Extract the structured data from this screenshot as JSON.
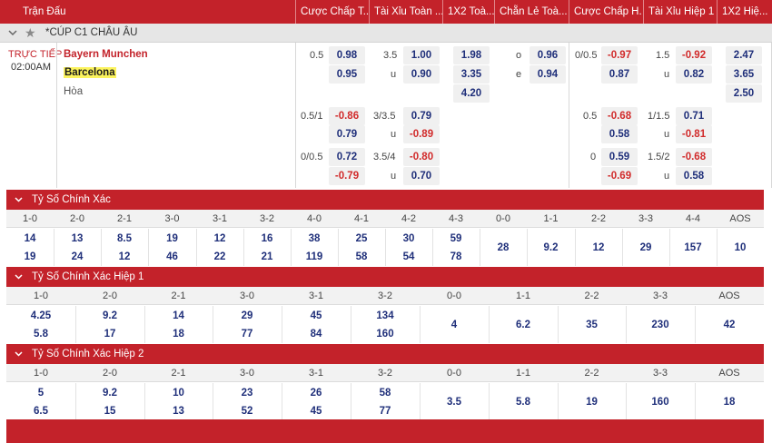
{
  "header": {
    "cols": [
      "Trận Đấu",
      "Cược Chấp T...",
      "Tài Xỉu Toàn ...",
      "1X2 Toà...",
      "Chẵn Lẻ Toà...",
      "Cược Chấp H...",
      "Tài Xỉu Hiệp 1",
      "1X2 Hiệ..."
    ]
  },
  "league": {
    "name": "*CÚP C1 CHÂU ÂU",
    "star_icon": "star-icon",
    "expand_icon": "chevron-down-icon"
  },
  "match": {
    "status": "TRỰC TIẾP",
    "time": "02:00AM",
    "home": "Bayern Munchen",
    "away": "Barcelona",
    "draw": "Hòa",
    "rows": [
      {
        "hcp_full": {
          "line": "0.5",
          "a": "0.98",
          "b": "0.95"
        },
        "ou_full": {
          "line": "3.5",
          "a": "1.00",
          "u_label": "u",
          "b": "0.90"
        },
        "x12_full": [
          "1.98",
          "3.35",
          "4.20"
        ],
        "oe_full": {
          "o_label": "o",
          "o": "0.96",
          "e_label": "e",
          "e": "0.94"
        },
        "hcp_h1": {
          "line": "0/0.5",
          "a": "-0.97",
          "b": "0.87"
        },
        "ou_h1": {
          "line": "1.5",
          "a": "-0.92",
          "u_label": "u",
          "b": "0.82"
        },
        "x12_h1": [
          "2.47",
          "3.65",
          "2.50"
        ]
      },
      {
        "hcp_full": {
          "line": "0.5/1",
          "a": "-0.86",
          "b": "0.79"
        },
        "ou_full": {
          "line": "3/3.5",
          "a": "0.79",
          "u_label": "u",
          "b": "-0.89"
        },
        "hcp_h1": {
          "line": "0.5",
          "a": "-0.68",
          "b": "0.58"
        },
        "ou_h1": {
          "line": "1/1.5",
          "a": "0.71",
          "u_label": "u",
          "b": "-0.81"
        }
      },
      {
        "hcp_full": {
          "line": "0/0.5",
          "a": "0.72",
          "b": "-0.79"
        },
        "ou_full": {
          "line": "3.5/4",
          "a": "-0.80",
          "u_label": "u",
          "b": "0.70"
        },
        "hcp_h1": {
          "line": "0",
          "a": "0.59",
          "b": "-0.69"
        },
        "ou_h1": {
          "line": "1.5/2",
          "a": "-0.68",
          "u_label": "u",
          "b": "0.58"
        }
      }
    ]
  },
  "correct_score": {
    "title": "Tỷ Số Chính Xác",
    "headers": [
      "1-0",
      "2-0",
      "2-1",
      "3-0",
      "3-1",
      "3-2",
      "4-0",
      "4-1",
      "4-2",
      "4-3",
      "0-0",
      "1-1",
      "2-2",
      "3-3",
      "4-4",
      "AOS"
    ],
    "top": [
      "14",
      "13",
      "8.5",
      "19",
      "12",
      "16",
      "38",
      "25",
      "30",
      "59",
      "28",
      "9.2",
      "12",
      "29",
      "157",
      "10"
    ],
    "bottom": [
      "19",
      "24",
      "12",
      "46",
      "22",
      "21",
      "119",
      "58",
      "54",
      "78",
      "",
      "",
      "",
      "",
      "",
      ""
    ]
  },
  "correct_score_h1": {
    "title": "Tỷ Số Chính Xác Hiệp 1",
    "headers": [
      "1-0",
      "2-0",
      "2-1",
      "3-0",
      "3-1",
      "3-2",
      "0-0",
      "1-1",
      "2-2",
      "3-3",
      "AOS"
    ],
    "top": [
      "4.25",
      "9.2",
      "14",
      "29",
      "45",
      "134",
      "4",
      "6.2",
      "35",
      "230",
      "42"
    ],
    "bottom": [
      "5.8",
      "17",
      "18",
      "77",
      "84",
      "160",
      "",
      "",
      "",
      "",
      ""
    ]
  },
  "correct_score_h2": {
    "title": "Tỷ Số Chính Xác Hiệp 2",
    "headers": [
      "1-0",
      "2-0",
      "2-1",
      "3-0",
      "3-1",
      "3-2",
      "0-0",
      "1-1",
      "2-2",
      "3-3",
      "AOS"
    ],
    "top": [
      "5",
      "9.2",
      "10",
      "23",
      "26",
      "58",
      "3.5",
      "5.8",
      "19",
      "160",
      "18"
    ],
    "bottom": [
      "6.5",
      "15",
      "13",
      "52",
      "45",
      "77",
      "",
      "",
      "",
      "",
      ""
    ]
  },
  "colors": {
    "brand_red": "#c3222a",
    "odds_blue": "#1f2f7a",
    "odds_negative": "#d12a2a",
    "highlight_yellow": "#fbf35d"
  }
}
